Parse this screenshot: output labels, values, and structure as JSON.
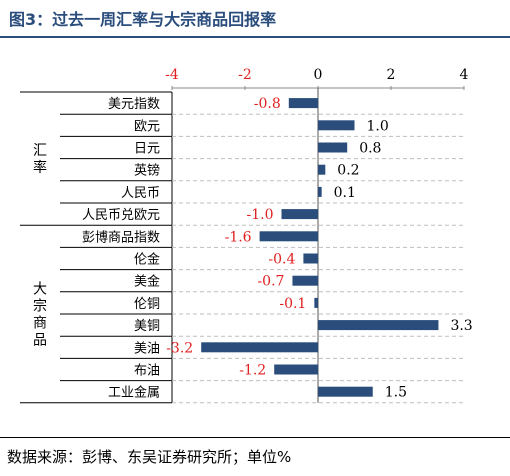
{
  "title": "图3：过去一周汇率与大宗商品回报率",
  "source": "数据来源：彭博、东吴证券研究所；单位%",
  "colors": {
    "title": "#2a4d7c",
    "bar": "#2a4d7c",
    "negative_label": "#e02020",
    "positive_label": "#000000",
    "grid": "#bfbfbf"
  },
  "chart_data": {
    "type": "bar",
    "orientation": "horizontal",
    "xlim": [
      -4,
      4
    ],
    "xticks": [
      -4,
      -2,
      0,
      2,
      4
    ],
    "grid": true,
    "groups": [
      {
        "name": "汇率",
        "items": [
          "美元指数",
          "欧元",
          "日元",
          "英镑",
          "人民币",
          "人民币兑欧元"
        ]
      },
      {
        "name": "大宗商品",
        "items": [
          "彭博商品指数",
          "伦金",
          "美金",
          "伦铜",
          "美铜",
          "美油",
          "布油",
          "工业金属"
        ]
      }
    ],
    "categories": [
      "美元指数",
      "欧元",
      "日元",
      "英镑",
      "人民币",
      "人民币兑欧元",
      "彭博商品指数",
      "伦金",
      "美金",
      "伦铜",
      "美铜",
      "美油",
      "布油",
      "工业金属"
    ],
    "values": [
      -0.8,
      1.0,
      0.8,
      0.2,
      0.1,
      -1.0,
      -1.6,
      -0.4,
      -0.7,
      -0.1,
      3.3,
      -3.2,
      -1.2,
      1.5
    ],
    "value_labels": [
      "-0.8",
      "1.0",
      "0.8",
      "0.2",
      "0.1",
      "-1.0",
      "-1.6",
      "-0.4",
      "-0.7",
      "-0.1",
      "3.3",
      "-3.2",
      "-1.2",
      "1.5"
    ]
  }
}
